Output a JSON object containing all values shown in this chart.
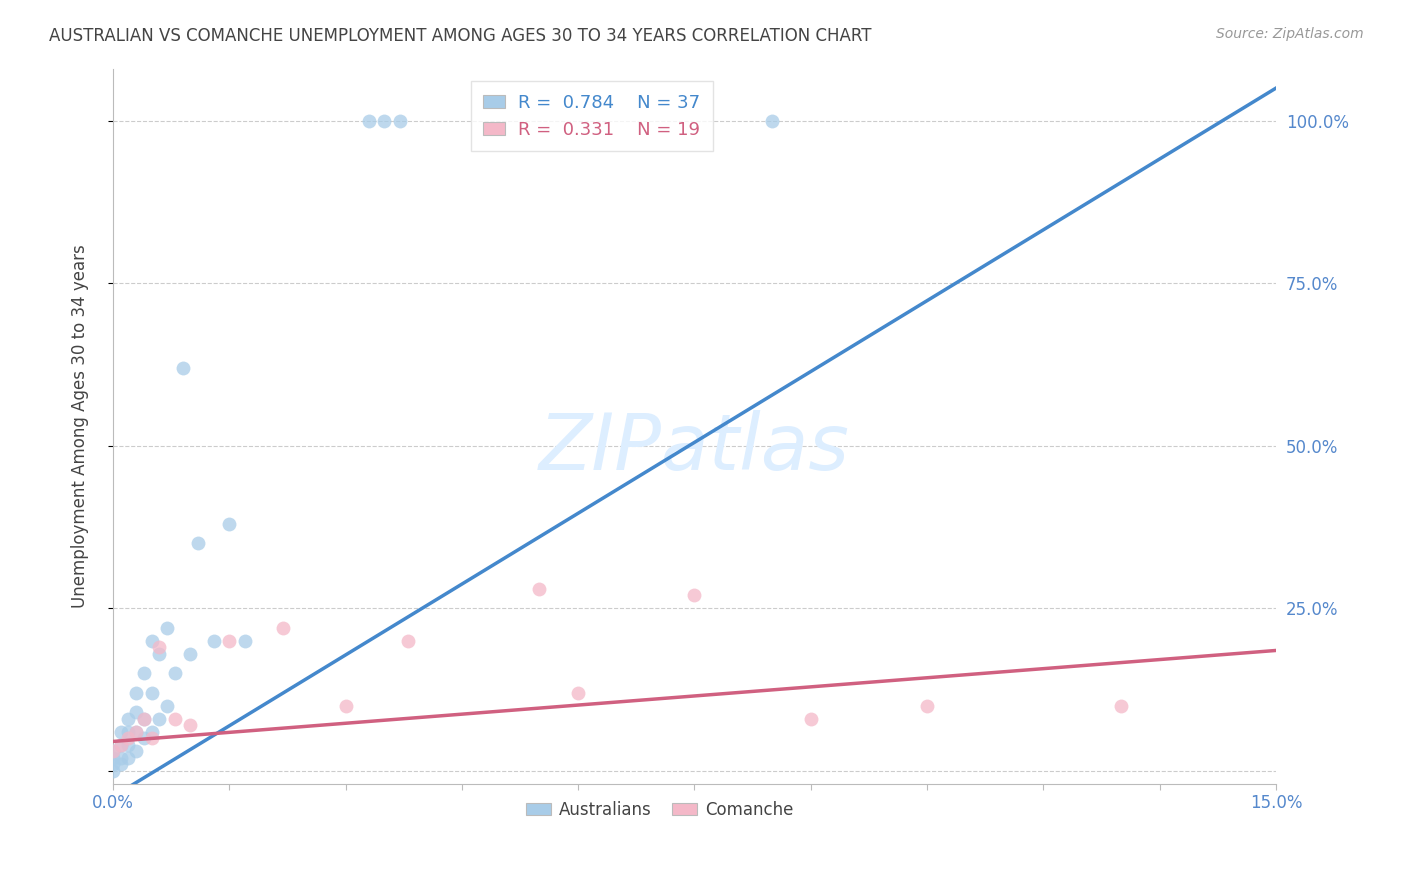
{
  "title": "AUSTRALIAN VS COMANCHE UNEMPLOYMENT AMONG AGES 30 TO 34 YEARS CORRELATION CHART",
  "source": "Source: ZipAtlas.com",
  "ylabel": "Unemployment Among Ages 30 to 34 years",
  "xlim": [
    0.0,
    0.15
  ],
  "ylim": [
    -0.02,
    1.08
  ],
  "xticks": [
    0.0,
    0.015,
    0.03,
    0.045,
    0.06,
    0.075,
    0.09,
    0.105,
    0.12,
    0.135,
    0.15
  ],
  "xtick_labels": [
    "0.0%",
    "",
    "",
    "",
    "",
    "",
    "",
    "",
    "",
    "",
    "15.0%"
  ],
  "ytick_positions": [
    0.0,
    0.25,
    0.5,
    0.75,
    1.0
  ],
  "ytick_labels_right": [
    "",
    "25.0%",
    "50.0%",
    "75.0%",
    "100.0%"
  ],
  "legend_r_blue": "0.784",
  "legend_n_blue": "37",
  "legend_r_pink": "0.331",
  "legend_n_pink": "19",
  "blue_color": "#a8cce8",
  "pink_color": "#f4b8c8",
  "blue_line_color": "#4488cc",
  "pink_line_color": "#d06080",
  "title_color": "#444444",
  "right_axis_color": "#5588cc",
  "watermark_color": "#ddeeff",
  "background_color": "#ffffff",
  "grid_color": "#cccccc",
  "australians_x": [
    0.0,
    0.0,
    0.0,
    0.0,
    0.001,
    0.001,
    0.001,
    0.001,
    0.002,
    0.002,
    0.002,
    0.002,
    0.003,
    0.003,
    0.003,
    0.003,
    0.004,
    0.004,
    0.004,
    0.005,
    0.005,
    0.005,
    0.006,
    0.006,
    0.007,
    0.007,
    0.008,
    0.009,
    0.01,
    0.011,
    0.013,
    0.015,
    0.017,
    0.033,
    0.035,
    0.037,
    0.085
  ],
  "australians_y": [
    0.0,
    0.01,
    0.02,
    0.03,
    0.01,
    0.02,
    0.04,
    0.06,
    0.02,
    0.04,
    0.06,
    0.08,
    0.03,
    0.06,
    0.09,
    0.12,
    0.05,
    0.08,
    0.15,
    0.06,
    0.12,
    0.2,
    0.08,
    0.18,
    0.1,
    0.22,
    0.15,
    0.62,
    0.18,
    0.35,
    0.2,
    0.38,
    0.2,
    1.0,
    1.0,
    1.0,
    1.0
  ],
  "comanche_x": [
    0.0,
    0.001,
    0.002,
    0.003,
    0.004,
    0.005,
    0.006,
    0.008,
    0.01,
    0.015,
    0.022,
    0.03,
    0.038,
    0.055,
    0.06,
    0.075,
    0.09,
    0.105,
    0.13
  ],
  "comanche_y": [
    0.03,
    0.04,
    0.05,
    0.06,
    0.08,
    0.05,
    0.19,
    0.08,
    0.07,
    0.2,
    0.22,
    0.1,
    0.2,
    0.28,
    0.12,
    0.27,
    0.08,
    0.1,
    0.1
  ],
  "blue_trend_x": [
    0.0,
    0.15
  ],
  "blue_trend_y": [
    -0.04,
    1.05
  ],
  "pink_trend_x": [
    0.0,
    0.15
  ],
  "pink_trend_y": [
    0.045,
    0.185
  ]
}
